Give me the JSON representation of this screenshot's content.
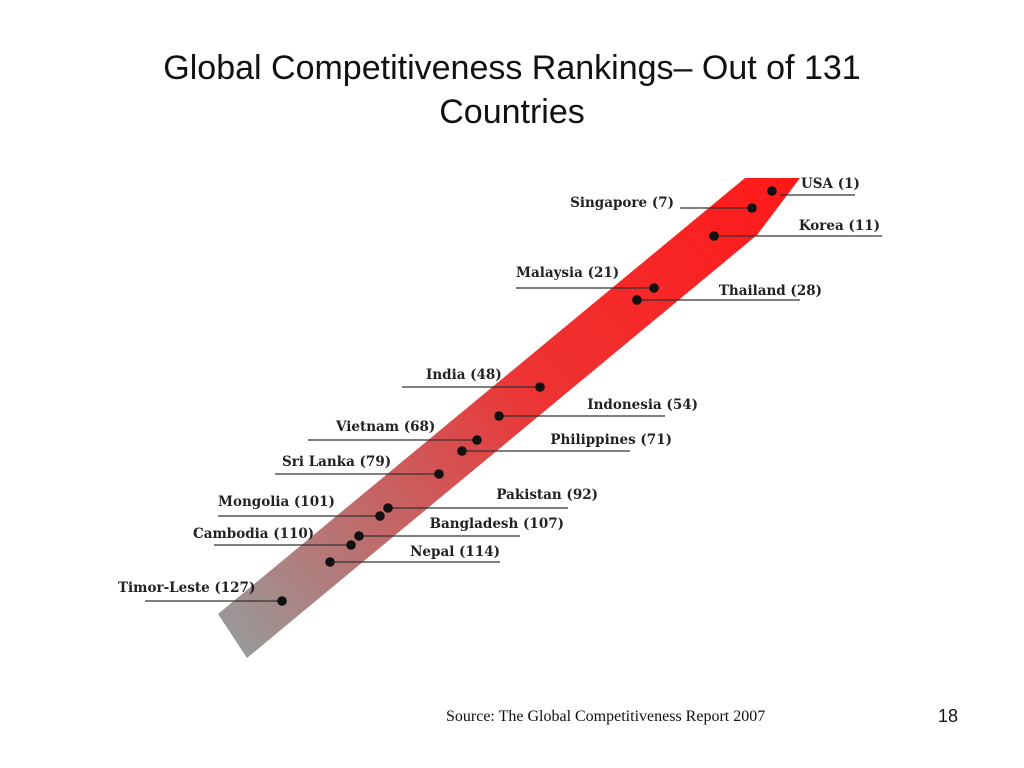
{
  "title": {
    "line1": "Global Competitiveness Rankings– Out of 131",
    "line2": "Countries"
  },
  "diagram": {
    "arrow_colors": {
      "top": "#ff1a1a",
      "bottom": "#999999"
    },
    "countries": [
      {
        "name": "USA",
        "rank": 1,
        "label": "USA (1)"
      },
      {
        "name": "Singapore",
        "rank": 7,
        "label": "Singapore (7)"
      },
      {
        "name": "Korea",
        "rank": 11,
        "label": "Korea (11)"
      },
      {
        "name": "Malaysia",
        "rank": 21,
        "label": "Malaysia (21)"
      },
      {
        "name": "Thailand",
        "rank": 28,
        "label": "Thailand (28)"
      },
      {
        "name": "India",
        "rank": 48,
        "label": "India (48)"
      },
      {
        "name": "Indonesia",
        "rank": 54,
        "label": "Indonesia (54)"
      },
      {
        "name": "Vietnam",
        "rank": 68,
        "label": "Vietnam (68)"
      },
      {
        "name": "Philippines",
        "rank": 71,
        "label": "Philippines (71)"
      },
      {
        "name": "Sri Lanka",
        "rank": 79,
        "label": "Sri Lanka (79)"
      },
      {
        "name": "Pakistan",
        "rank": 92,
        "label": "Pakistan (92)"
      },
      {
        "name": "Mongolia",
        "rank": 101,
        "label": "Mongolia (101)"
      },
      {
        "name": "Bangladesh",
        "rank": 107,
        "label": "Bangladesh (107)"
      },
      {
        "name": "Cambodia",
        "rank": 110,
        "label": "Cambodia (110)"
      },
      {
        "name": "Nepal",
        "rank": 114,
        "label": "Nepal (114)"
      },
      {
        "name": "Timor-Leste",
        "rank": 127,
        "label": "Timor-Leste (127)"
      }
    ]
  },
  "footer": {
    "source": "Source: The Global Competitiveness Report 2007",
    "page_number": "18"
  }
}
